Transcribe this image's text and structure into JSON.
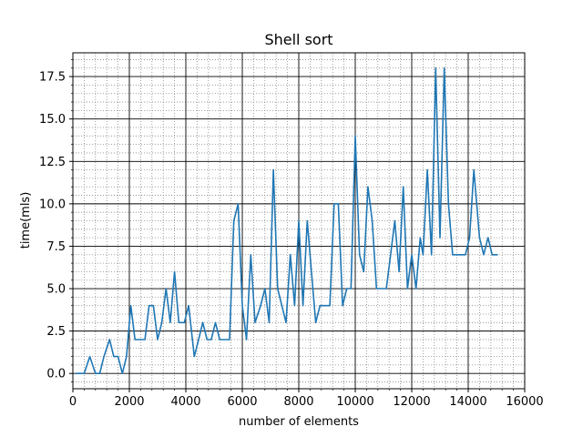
{
  "chart_data": {
    "type": "line",
    "title": "Shell sort",
    "xlabel": "number of elements",
    "ylabel": "time(mls)",
    "xlim": [
      0,
      16000
    ],
    "ylim": [
      -0.9,
      18.9
    ],
    "xticks": [
      0,
      2000,
      4000,
      6000,
      8000,
      10000,
      12000,
      14000,
      16000
    ],
    "yticks": [
      0.0,
      2.5,
      5.0,
      7.5,
      10.0,
      12.5,
      15.0,
      17.5
    ],
    "xtick_labels": [
      "0",
      "2000",
      "4000",
      "6000",
      "8000",
      "10000",
      "12000",
      "14000",
      "16000"
    ],
    "ytick_labels": [
      "0.0",
      "2.5",
      "5.0",
      "7.5",
      "10.0",
      "12.5",
      "15.0",
      "17.5"
    ],
    "grid": "major solid, minor dotted",
    "line_color": "#1f77b4",
    "series": [
      {
        "x": [
          100,
          250,
          400,
          600,
          800,
          950,
          1100,
          1300,
          1450,
          1600,
          1750,
          1900,
          2050,
          2200,
          2400,
          2550,
          2700,
          2850,
          3000,
          3150,
          3300,
          3450,
          3600,
          3750,
          3950,
          4100,
          4300,
          4450,
          4600,
          4750,
          4900,
          5050,
          5200,
          5350,
          5550,
          5700,
          5850,
          6000,
          6150,
          6300,
          6450,
          6650,
          6800,
          6950,
          7100,
          7250,
          7400,
          7550,
          7700,
          7850,
          8000,
          8150,
          8300,
          8450,
          8600,
          8750,
          8900,
          9100,
          9250,
          9400,
          9550,
          9700,
          9850,
          10000,
          10150,
          10300,
          10450,
          10600,
          10750,
          10900,
          11100,
          11250,
          11400,
          11550,
          11700,
          11850,
          12000,
          12150,
          12300,
          12400,
          12550,
          12700,
          12850,
          13000,
          13150,
          13300,
          13450,
          13600,
          13750,
          13900,
          14050,
          14200,
          14400,
          14550,
          14700,
          14850,
          15050
        ],
        "y": [
          0,
          0,
          0,
          1,
          0,
          0,
          1,
          2,
          1,
          1,
          0,
          1,
          4,
          2,
          2,
          2,
          4,
          4,
          2,
          3,
          5,
          3,
          6,
          3,
          3,
          4,
          1,
          2,
          3,
          2,
          2,
          3,
          2,
          2,
          2,
          9,
          10,
          4,
          2,
          7,
          3,
          4,
          5,
          3,
          12,
          5,
          4,
          3,
          7,
          4,
          9,
          4,
          9,
          6,
          3,
          4,
          4,
          4,
          10,
          10,
          4,
          5,
          5,
          14,
          7,
          6,
          11,
          9,
          5,
          5,
          5,
          7,
          9,
          6,
          11,
          5,
          7,
          5,
          8,
          7,
          12,
          7,
          18,
          8,
          18,
          10,
          7,
          7,
          7,
          7,
          8,
          12,
          8,
          7,
          8,
          7,
          7
        ]
      }
    ]
  }
}
